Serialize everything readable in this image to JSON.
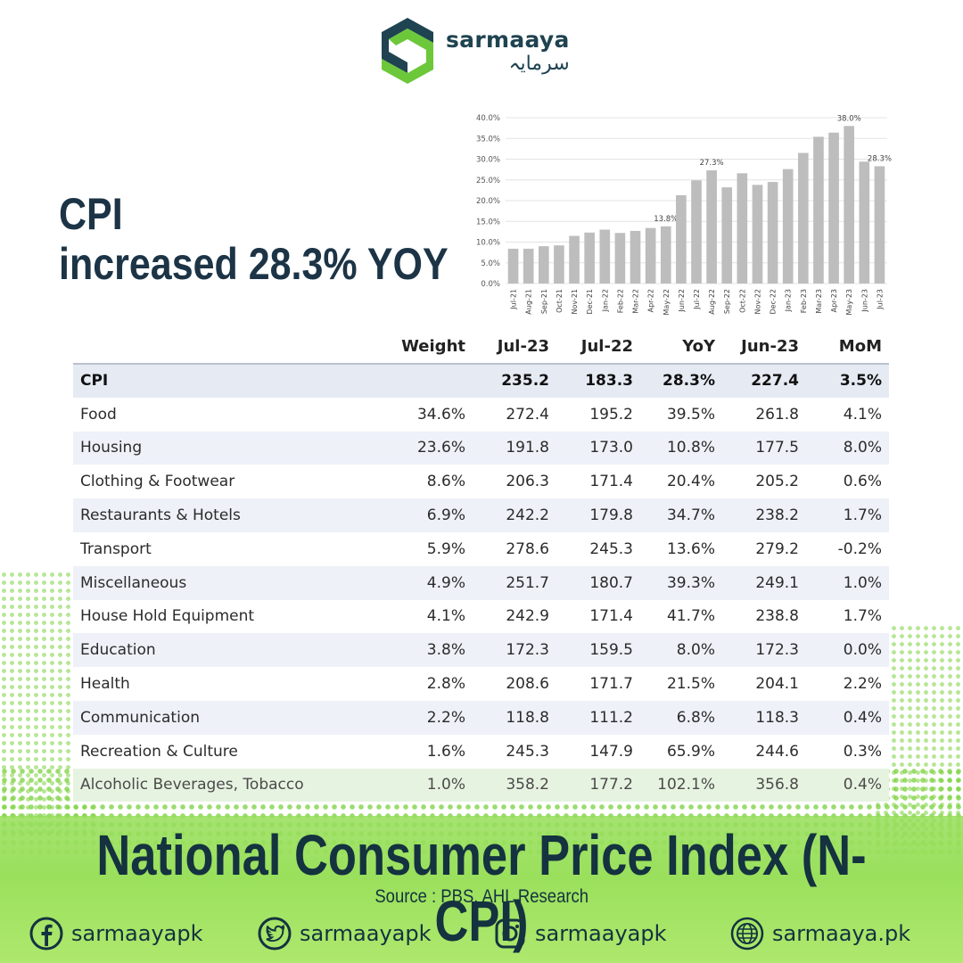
{
  "brand": {
    "name_en": "sarmaaya",
    "name_ur": "سرمایہ",
    "colors": {
      "dark": "#1f4350",
      "green": "#6cc83a"
    }
  },
  "headline": {
    "line1": "CPI",
    "line2": "increased 28.3% YOY"
  },
  "chart_data": {
    "type": "bar",
    "categories": [
      "Jul-21",
      "Aug-21",
      "Sep-21",
      "Oct-21",
      "Nov-21",
      "Dec-21",
      "Jan-22",
      "Feb-22",
      "Mar-22",
      "Apr-22",
      "May-22",
      "Jun-22",
      "Jul-22",
      "Aug-22",
      "Sep-22",
      "Oct-22",
      "Nov-22",
      "Dec-22",
      "Jan-23",
      "Feb-23",
      "Mar-23",
      "Apr-23",
      "May-23",
      "Jun-23",
      "Jul-23"
    ],
    "values": [
      8.4,
      8.4,
      9.0,
      9.2,
      11.5,
      12.3,
      13.0,
      12.2,
      12.7,
      13.4,
      13.8,
      21.3,
      24.9,
      27.3,
      23.2,
      26.6,
      23.8,
      24.5,
      27.6,
      31.5,
      35.4,
      36.4,
      38.0,
      29.4,
      28.3
    ],
    "data_labels": {
      "10": "13.8%",
      "13": "27.3%",
      "22": "38.0%",
      "24": "28.3%"
    },
    "yticks": [
      "0.0%",
      "5.0%",
      "10.0%",
      "15.0%",
      "20.0%",
      "25.0%",
      "30.0%",
      "35.0%",
      "40.0%"
    ],
    "ylim": [
      0,
      40
    ],
    "grid": true,
    "bar_color": "#bdbdbd",
    "title": "",
    "xlabel": "",
    "ylabel": ""
  },
  "table": {
    "headers": [
      "",
      "Weight",
      "Jul-23",
      "Jul-22",
      "YoY",
      "Jun-23",
      "MoM"
    ],
    "rows": [
      [
        "CPI",
        "",
        "235.2",
        "183.3",
        "28.3%",
        "227.4",
        "3.5%"
      ],
      [
        "Food",
        "34.6%",
        "272.4",
        "195.2",
        "39.5%",
        "261.8",
        "4.1%"
      ],
      [
        "Housing",
        "23.6%",
        "191.8",
        "173.0",
        "10.8%",
        "177.5",
        "8.0%"
      ],
      [
        "Clothing & Footwear",
        "8.6%",
        "206.3",
        "171.4",
        "20.4%",
        "205.2",
        "0.6%"
      ],
      [
        "Restaurants & Hotels",
        "6.9%",
        "242.2",
        "179.8",
        "34.7%",
        "238.2",
        "1.7%"
      ],
      [
        "Transport",
        "5.9%",
        "278.6",
        "245.3",
        "13.6%",
        "279.2",
        "-0.2%"
      ],
      [
        "Miscellaneous",
        "4.9%",
        "251.7",
        "180.7",
        "39.3%",
        "249.1",
        "1.0%"
      ],
      [
        "House Hold Equipment",
        "4.1%",
        "242.9",
        "171.4",
        "41.7%",
        "238.8",
        "1.7%"
      ],
      [
        "Education",
        "3.8%",
        "172.3",
        "159.5",
        "8.0%",
        "172.3",
        "0.0%"
      ],
      [
        "Health",
        "2.8%",
        "208.6",
        "171.7",
        "21.5%",
        "204.1",
        "2.2%"
      ],
      [
        "Communication",
        "2.2%",
        "118.8",
        "111.2",
        "6.8%",
        "118.3",
        "0.4%"
      ],
      [
        "Recreation & Culture",
        "1.6%",
        "245.3",
        "147.9",
        "65.9%",
        "244.6",
        "0.3%"
      ],
      [
        "Alcoholic Beverages, Tobacco",
        "1.0%",
        "358.2",
        "177.2",
        "102.1%",
        "356.8",
        "0.4%"
      ]
    ]
  },
  "footer": {
    "title": "National Consumer Price Index (N-CPI)",
    "source": "Source : PBS, AHL Research",
    "socials": [
      {
        "icon": "facebook-icon",
        "handle": "sarmaayapk"
      },
      {
        "icon": "twitter-icon",
        "handle": "sarmaayapk"
      },
      {
        "icon": "instagram-icon",
        "handle": "sarmaayapk"
      },
      {
        "icon": "globe-icon",
        "handle": "sarmaaya.pk"
      }
    ]
  }
}
